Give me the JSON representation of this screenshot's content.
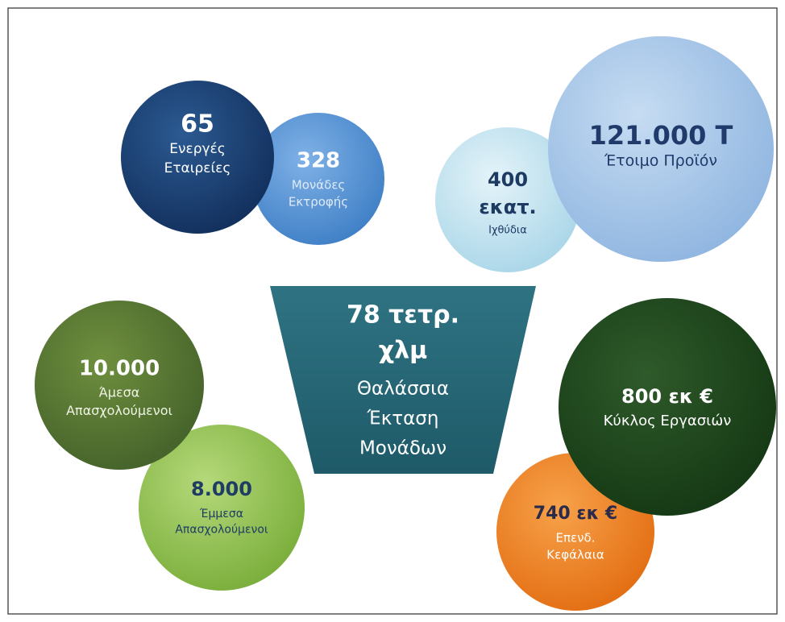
{
  "bubbles": [
    {
      "value": "328",
      "label": [
        "Μονάδες",
        "Εκτροφής"
      ]
    },
    {
      "value": "65",
      "label": [
        "Ενεργές",
        "Εταιρείες"
      ]
    },
    {
      "value": "400",
      "label": [
        "εκατ.",
        "Ιχθύδια"
      ]
    },
    {
      "value": "121.000 Τ",
      "label": [
        "Έτοιμο Προϊόν"
      ]
    },
    {
      "value": "8.000",
      "label": [
        "Έμμεσα",
        "Απασχολούμενοι"
      ]
    },
    {
      "value": "10.000",
      "label": [
        "Άμεσα",
        "Απασχολούμενοι"
      ]
    },
    {
      "value": "740 εκ €",
      "label": [
        "Επενδ.",
        "Κεφάλαια"
      ]
    },
    {
      "value": "800 εκ €",
      "label": [
        "Κύκλος Εργασιών"
      ]
    }
  ],
  "center": {
    "value": [
      "78 τετρ.",
      "χλμ"
    ],
    "label": [
      "Θαλάσσια",
      "Έκταση",
      "Μονάδων"
    ]
  }
}
